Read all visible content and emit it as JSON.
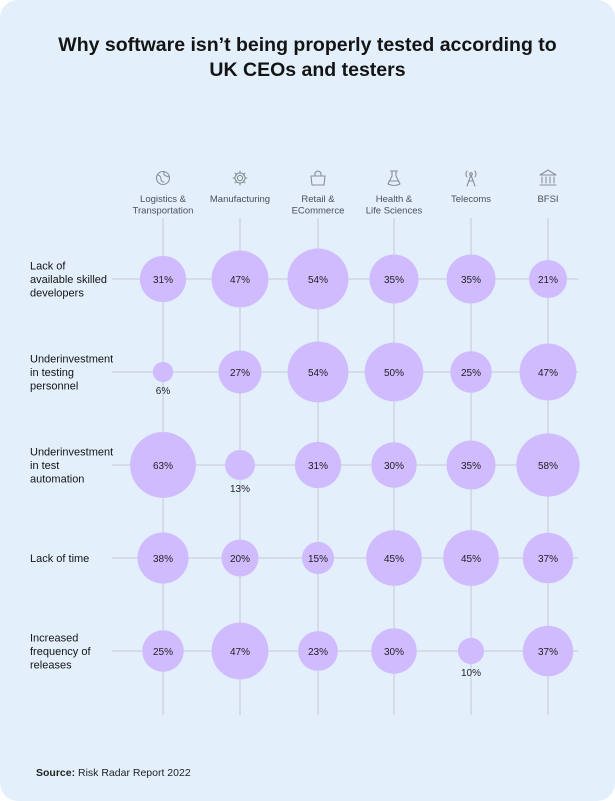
{
  "title_lines": [
    "Why software isn’t being properly tested according to",
    "UK CEOs and testers"
  ],
  "source": {
    "label": "Source:",
    "text": "Risk Radar Report 2022"
  },
  "colors": {
    "background": "#e3f0fc",
    "bubble": "#d1bbff",
    "grid": "#c4c9d2",
    "text": "#1f1f1f",
    "icon": "#8a8f96"
  },
  "chart_data": {
    "type": "bubble-matrix",
    "unit": "%",
    "categories": [
      {
        "label_lines": [
          "Logistics &",
          "Transportation"
        ],
        "icon": "globe-icon"
      },
      {
        "label_lines": [
          "Manufacturing"
        ],
        "icon": "gear-icon"
      },
      {
        "label_lines": [
          "Retail &",
          "ECommerce"
        ],
        "icon": "shopping-bag-icon"
      },
      {
        "label_lines": [
          "Health &",
          "Life Sciences"
        ],
        "icon": "flask-icon"
      },
      {
        "label_lines": [
          "Telecoms"
        ],
        "icon": "antenna-icon"
      },
      {
        "label_lines": [
          "BFSI"
        ],
        "icon": "bank-icon"
      }
    ],
    "series": [
      {
        "name_lines": [
          "Lack of",
          "available skilled",
          "developers"
        ],
        "values": [
          31,
          47,
          54,
          35,
          35,
          21
        ]
      },
      {
        "name_lines": [
          "Underinvestment",
          "in testing",
          "personnel"
        ],
        "values": [
          6,
          27,
          54,
          50,
          25,
          47
        ]
      },
      {
        "name_lines": [
          "Underinvestment",
          "in test",
          "automation"
        ],
        "values": [
          63,
          13,
          31,
          30,
          35,
          58
        ]
      },
      {
        "name_lines": [
          "Lack of time"
        ],
        "values": [
          38,
          20,
          15,
          45,
          45,
          37
        ]
      },
      {
        "name_lines": [
          "Increased",
          "frequency of",
          "releases"
        ],
        "values": [
          25,
          47,
          23,
          30,
          10,
          37
        ]
      }
    ]
  }
}
